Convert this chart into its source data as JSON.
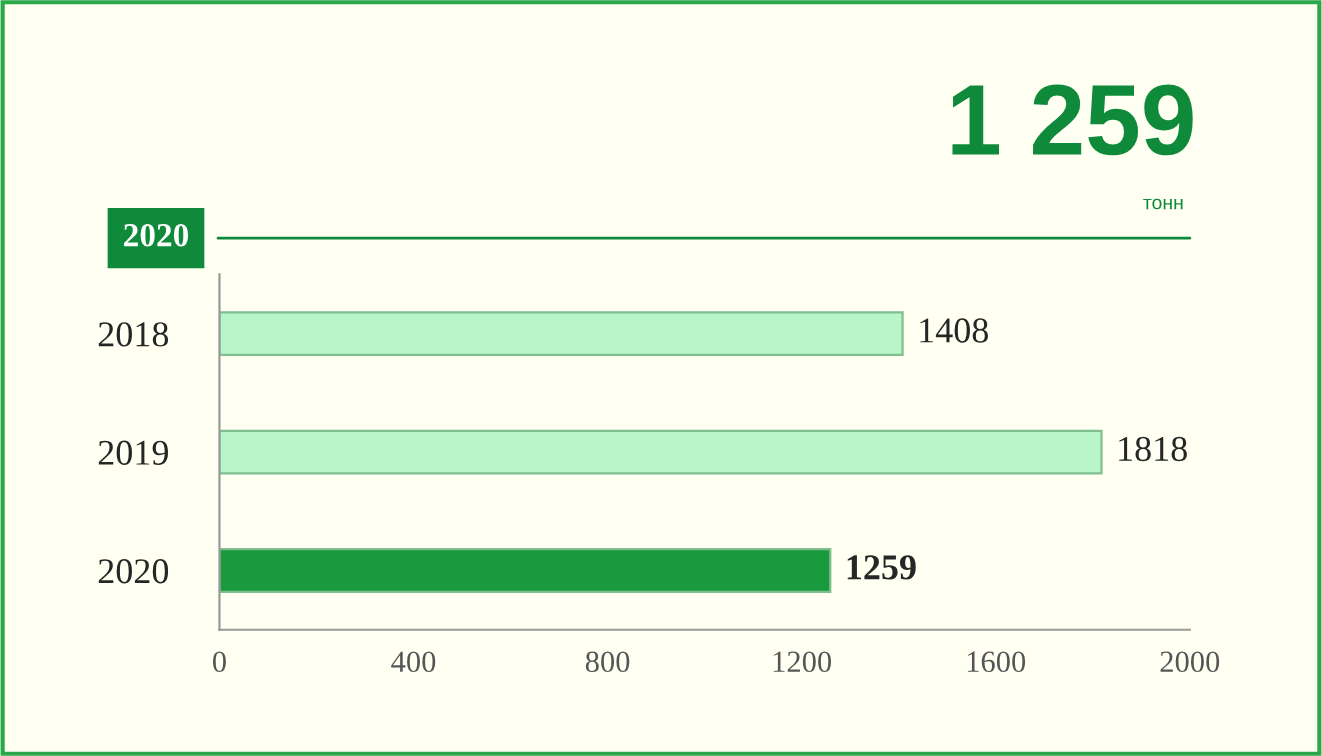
{
  "chart_data": {
    "type": "bar",
    "orientation": "horizontal",
    "title": "2020",
    "annotations": [
      "1 259",
      "тонн"
    ],
    "categories": [
      "2018",
      "2019",
      "2020"
    ],
    "values": [
      1408,
      1818,
      1259
    ],
    "colors": [
      "#b8f5c8",
      "#b8f5c8",
      "#1a9a3c"
    ],
    "data_labels": true,
    "xlim": [
      0,
      2000
    ],
    "xticks": [
      0,
      400,
      800,
      1200,
      1600,
      2000
    ],
    "grid": false,
    "legend": false
  }
}
